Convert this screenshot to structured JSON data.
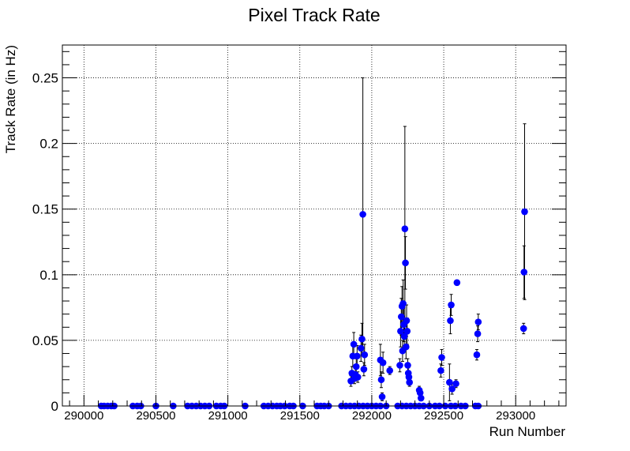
{
  "chart_data": {
    "type": "scatter",
    "title": "Pixel Track Rate",
    "xlabel": "Run Number",
    "ylabel": "Track Rate (in Hz)",
    "xlim": [
      289850,
      293350
    ],
    "ylim": [
      0,
      0.275
    ],
    "x_ticks": [
      290000,
      290500,
      291000,
      291500,
      292000,
      292500,
      293000
    ],
    "y_ticks": [
      0,
      0.05,
      0.1,
      0.15,
      0.2,
      0.25
    ],
    "y_tick_labels": [
      "0",
      "0.05",
      "0.1",
      "0.15",
      "0.2",
      "0.25"
    ],
    "grid": true,
    "grid_style": "dotted",
    "marker_color": "#0000ff",
    "error_bar_color": "#000000",
    "series": [
      {
        "points": [
          {
            "x": 290120,
            "y": 0
          },
          {
            "x": 290140,
            "y": 0
          },
          {
            "x": 290165,
            "y": 0
          },
          {
            "x": 290190,
            "y": 0
          },
          {
            "x": 290210,
            "y": 0
          },
          {
            "x": 290340,
            "y": 0
          },
          {
            "x": 290370,
            "y": 0
          },
          {
            "x": 290395,
            "y": 0
          },
          {
            "x": 290500,
            "y": 0
          },
          {
            "x": 290620,
            "y": 0
          },
          {
            "x": 290720,
            "y": 0
          },
          {
            "x": 290750,
            "y": 0
          },
          {
            "x": 290780,
            "y": 0
          },
          {
            "x": 290810,
            "y": 0
          },
          {
            "x": 290840,
            "y": 0
          },
          {
            "x": 290870,
            "y": 0
          },
          {
            "x": 290920,
            "y": 0
          },
          {
            "x": 290950,
            "y": 0
          },
          {
            "x": 290975,
            "y": 0
          },
          {
            "x": 291120,
            "y": 0
          },
          {
            "x": 291250,
            "y": 0
          },
          {
            "x": 291280,
            "y": 0
          },
          {
            "x": 291310,
            "y": 0
          },
          {
            "x": 291340,
            "y": 0
          },
          {
            "x": 291365,
            "y": 0
          },
          {
            "x": 291395,
            "y": 0
          },
          {
            "x": 291430,
            "y": 0
          },
          {
            "x": 291455,
            "y": 0
          },
          {
            "x": 291520,
            "y": 0
          },
          {
            "x": 291620,
            "y": 0
          },
          {
            "x": 291645,
            "y": 0
          },
          {
            "x": 291670,
            "y": 0
          },
          {
            "x": 291700,
            "y": 0
          },
          {
            "x": 291790,
            "y": 0
          },
          {
            "x": 291820,
            "y": 0
          },
          {
            "x": 291850,
            "y": 0
          },
          {
            "x": 291880,
            "y": 0
          },
          {
            "x": 291910,
            "y": 0
          },
          {
            "x": 291940,
            "y": 0
          },
          {
            "x": 291970,
            "y": 0
          },
          {
            "x": 292000,
            "y": 0
          },
          {
            "x": 292030,
            "y": 0
          },
          {
            "x": 292060,
            "y": 0
          },
          {
            "x": 292100,
            "y": 0
          },
          {
            "x": 292180,
            "y": 0
          },
          {
            "x": 292210,
            "y": 0
          },
          {
            "x": 292240,
            "y": 0
          },
          {
            "x": 292270,
            "y": 0
          },
          {
            "x": 292300,
            "y": 0
          },
          {
            "x": 292330,
            "y": 0
          },
          {
            "x": 292360,
            "y": 0
          },
          {
            "x": 292400,
            "y": 0
          },
          {
            "x": 292440,
            "y": 0
          },
          {
            "x": 292470,
            "y": 0
          },
          {
            "x": 292510,
            "y": 0
          },
          {
            "x": 292550,
            "y": 0
          },
          {
            "x": 292580,
            "y": 0
          },
          {
            "x": 292620,
            "y": 0
          },
          {
            "x": 292650,
            "y": 0
          },
          {
            "x": 292720,
            "y": 0
          },
          {
            "x": 292740,
            "y": 0
          },
          {
            "x": 291855,
            "y": 0.019,
            "err": 0.004
          },
          {
            "x": 291862,
            "y": 0.025,
            "err": 0.005
          },
          {
            "x": 291868,
            "y": 0.038,
            "err": 0.008
          },
          {
            "x": 291875,
            "y": 0.047,
            "err": 0.009
          },
          {
            "x": 291880,
            "y": 0.021,
            "err": 0.004
          },
          {
            "x": 291886,
            "y": 0.024,
            "err": 0.005
          },
          {
            "x": 291892,
            "y": 0.03,
            "err": 0.006
          },
          {
            "x": 291898,
            "y": 0.038,
            "err": 0.008
          },
          {
            "x": 291903,
            "y": 0.022,
            "err": 0.004
          },
          {
            "x": 291925,
            "y": 0.044,
            "err": 0.01
          },
          {
            "x": 291932,
            "y": 0.051,
            "err": 0.012
          },
          {
            "x": 291938,
            "y": 0.146,
            "err": 0.104
          },
          {
            "x": 291945,
            "y": 0.028,
            "err": 0.005
          },
          {
            "x": 291950,
            "y": 0.039,
            "err": 0.008
          },
          {
            "x": 292060,
            "y": 0.035,
            "err": 0.012
          },
          {
            "x": 292066,
            "y": 0.02,
            "err": 0.006
          },
          {
            "x": 292072,
            "y": 0.007,
            "err": 0.003
          },
          {
            "x": 292078,
            "y": 0.033,
            "err": 0.008
          },
          {
            "x": 292125,
            "y": 0.027,
            "err": 0.003
          },
          {
            "x": 292195,
            "y": 0.031,
            "err": 0.005
          },
          {
            "x": 292200,
            "y": 0.057,
            "err": 0.012
          },
          {
            "x": 292205,
            "y": 0.068,
            "err": 0.014
          },
          {
            "x": 292210,
            "y": 0.076,
            "err": 0.015
          },
          {
            "x": 292214,
            "y": 0.042,
            "err": 0.008
          },
          {
            "x": 292218,
            "y": 0.078,
            "err": 0.018
          },
          {
            "x": 292222,
            "y": 0.062,
            "err": 0.013
          },
          {
            "x": 292226,
            "y": 0.053,
            "err": 0.01
          },
          {
            "x": 292230,
            "y": 0.135,
            "err": 0.078
          },
          {
            "x": 292234,
            "y": 0.109,
            "err": 0.02
          },
          {
            "x": 292238,
            "y": 0.045,
            "err": 0.009
          },
          {
            "x": 292242,
            "y": 0.065,
            "err": 0.012
          },
          {
            "x": 292246,
            "y": 0.057,
            "err": 0.01
          },
          {
            "x": 292250,
            "y": 0.031,
            "err": 0.005
          },
          {
            "x": 292254,
            "y": 0.025,
            "err": 0.004
          },
          {
            "x": 292258,
            "y": 0.022,
            "err": 0.004
          },
          {
            "x": 292262,
            "y": 0.018,
            "err": 0.003
          },
          {
            "x": 292330,
            "y": 0.012,
            "err": 0.003
          },
          {
            "x": 292336,
            "y": 0.01,
            "err": 0.002
          },
          {
            "x": 292342,
            "y": 0.006,
            "err": 0.002
          },
          {
            "x": 292480,
            "y": 0.027,
            "err": 0.005
          },
          {
            "x": 292486,
            "y": 0.037,
            "err": 0.006
          },
          {
            "x": 292540,
            "y": 0.018,
            "err": 0.014
          },
          {
            "x": 292546,
            "y": 0.065,
            "err": 0.01
          },
          {
            "x": 292552,
            "y": 0.077,
            "err": 0.008
          },
          {
            "x": 292558,
            "y": 0.013,
            "err": 0.004
          },
          {
            "x": 292585,
            "y": 0.017,
            "err": 0.003
          },
          {
            "x": 292592,
            "y": 0.094,
            "err": 0.002
          },
          {
            "x": 292730,
            "y": 0.039,
            "err": 0.004
          },
          {
            "x": 292736,
            "y": 0.055,
            "err": 0.006
          },
          {
            "x": 292740,
            "y": 0.064,
            "err": 0.006
          },
          {
            "x": 293055,
            "y": 0.059,
            "err": 0.004
          },
          {
            "x": 293058,
            "y": 0.102,
            "err": 0.02
          },
          {
            "x": 293062,
            "y": 0.148,
            "err": 0.067
          }
        ]
      }
    ]
  }
}
